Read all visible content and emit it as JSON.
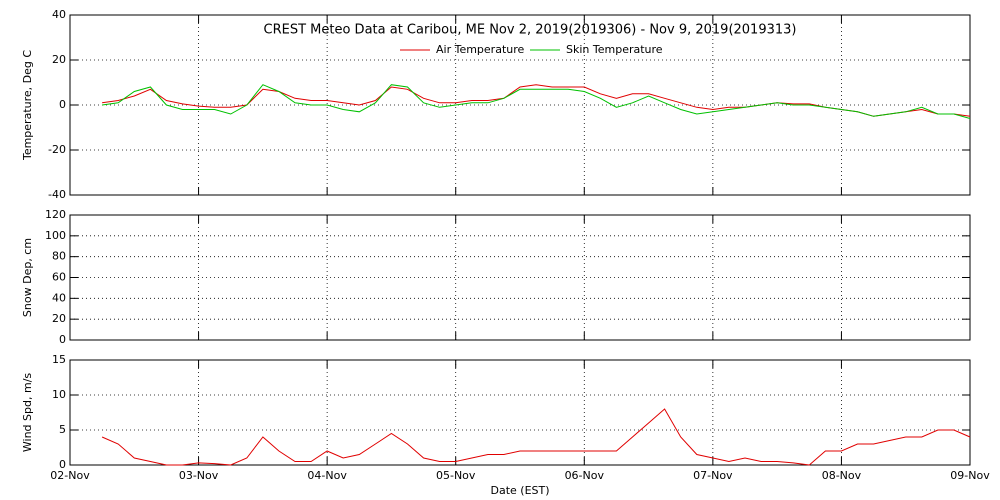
{
  "chart_data": [
    {
      "type": "line",
      "title": "CREST Meteo Data at Caribou, ME   Nov  2, 2019(2019306) - Nov  9, 2019(2019313)",
      "ylabel": "Temperature, Deg C",
      "x": [
        2.25,
        2.375,
        2.5,
        2.625,
        2.75,
        2.875,
        3.0,
        3.125,
        3.25,
        3.375,
        3.5,
        3.625,
        3.75,
        3.875,
        4.0,
        4.125,
        4.25,
        4.375,
        4.5,
        4.625,
        4.75,
        4.875,
        5.0,
        5.125,
        5.25,
        5.375,
        5.5,
        5.625,
        5.75,
        5.875,
        6.0,
        6.125,
        6.25,
        6.375,
        6.5,
        6.625,
        6.75,
        6.875,
        7.0,
        7.125,
        7.25,
        7.375,
        7.5,
        7.625,
        7.75,
        7.875,
        8.0,
        8.125,
        8.25,
        8.375,
        8.5,
        8.625,
        8.75,
        8.875,
        9.0
      ],
      "series": [
        {
          "name": "Air Temperature",
          "color": "#e00000",
          "values": [
            1,
            2,
            4,
            7,
            2,
            0.5,
            -0.5,
            -1,
            -1,
            0,
            7,
            6,
            3,
            2,
            2,
            1,
            0,
            2,
            8,
            7,
            3,
            1,
            1,
            2,
            2,
            3,
            8,
            9,
            8,
            8,
            8,
            5,
            3,
            5,
            5,
            3,
            1,
            -1,
            -2,
            -1,
            -1,
            0,
            1,
            0.5,
            0.5,
            -1,
            -2,
            -3,
            -5,
            -4,
            -3,
            -2,
            -4,
            -4,
            -5
          ]
        },
        {
          "name": "Skin Temperature",
          "color": "#00c000",
          "values": [
            0,
            1,
            6,
            8,
            0,
            -2,
            -2,
            -2,
            -4,
            0,
            9,
            6,
            1,
            0,
            0,
            -2,
            -3,
            1,
            9,
            8,
            1,
            -1,
            0,
            1,
            1,
            3,
            7,
            7,
            7,
            7,
            6,
            3,
            -1,
            1,
            4,
            1,
            -2,
            -4,
            -3,
            -2,
            -1,
            0,
            1,
            0,
            0,
            -1,
            -2,
            -3,
            -5,
            -4,
            -3,
            -1,
            -4,
            -4,
            -6
          ]
        }
      ],
      "xlim": [
        2,
        9
      ],
      "ylim": [
        -40,
        40
      ],
      "yticks": [
        -40,
        -20,
        0,
        20,
        40
      ],
      "grid": true
    },
    {
      "type": "line",
      "ylabel": "Snow Dep, cm",
      "x": [],
      "series": [],
      "xlim": [
        2,
        9
      ],
      "ylim": [
        0,
        120
      ],
      "yticks": [
        0,
        20,
        40,
        60,
        80,
        100,
        120
      ],
      "grid": true
    },
    {
      "type": "line",
      "ylabel": "Wind Spd, m/s",
      "xlabel": "Date (EST)",
      "x": [
        2.25,
        2.375,
        2.5,
        2.625,
        2.75,
        2.875,
        3.0,
        3.125,
        3.25,
        3.375,
        3.5,
        3.625,
        3.75,
        3.875,
        4.0,
        4.125,
        4.25,
        4.375,
        4.5,
        4.625,
        4.75,
        4.875,
        5.0,
        5.125,
        5.25,
        5.375,
        5.5,
        5.625,
        5.75,
        5.875,
        6.0,
        6.125,
        6.25,
        6.375,
        6.5,
        6.625,
        6.75,
        6.875,
        7.0,
        7.125,
        7.25,
        7.375,
        7.5,
        7.625,
        7.75,
        7.875,
        8.0,
        8.125,
        8.25,
        8.375,
        8.5,
        8.625,
        8.75,
        8.875,
        9.0
      ],
      "series": [
        {
          "color": "#e00000",
          "values": [
            4,
            3,
            1,
            0.5,
            0,
            0,
            0.3,
            0.2,
            0,
            1,
            4,
            2,
            0.5,
            0.5,
            2,
            1,
            1.5,
            3,
            4.5,
            3,
            1,
            0.5,
            0.5,
            1,
            1.5,
            1.5,
            2,
            2,
            2,
            2,
            2,
            2,
            2,
            4,
            6,
            8,
            4,
            1.5,
            1,
            0.5,
            1,
            0.5,
            0.5,
            0.3,
            0,
            2,
            2,
            3,
            3,
            3.5,
            4,
            4,
            5,
            5,
            4
          ]
        }
      ],
      "xlim": [
        2,
        9
      ],
      "xticks": [
        {
          "value": 2,
          "label": "02-Nov"
        },
        {
          "value": 3,
          "label": "03-Nov"
        },
        {
          "value": 4,
          "label": "04-Nov"
        },
        {
          "value": 5,
          "label": "05-Nov"
        },
        {
          "value": 6,
          "label": "06-Nov"
        },
        {
          "value": 7,
          "label": "07-Nov"
        },
        {
          "value": 8,
          "label": "08-Nov"
        },
        {
          "value": 9,
          "label": "09-Nov"
        }
      ],
      "ylim": [
        0,
        15
      ],
      "yticks": [
        0,
        5,
        10,
        15
      ],
      "grid": true
    }
  ]
}
